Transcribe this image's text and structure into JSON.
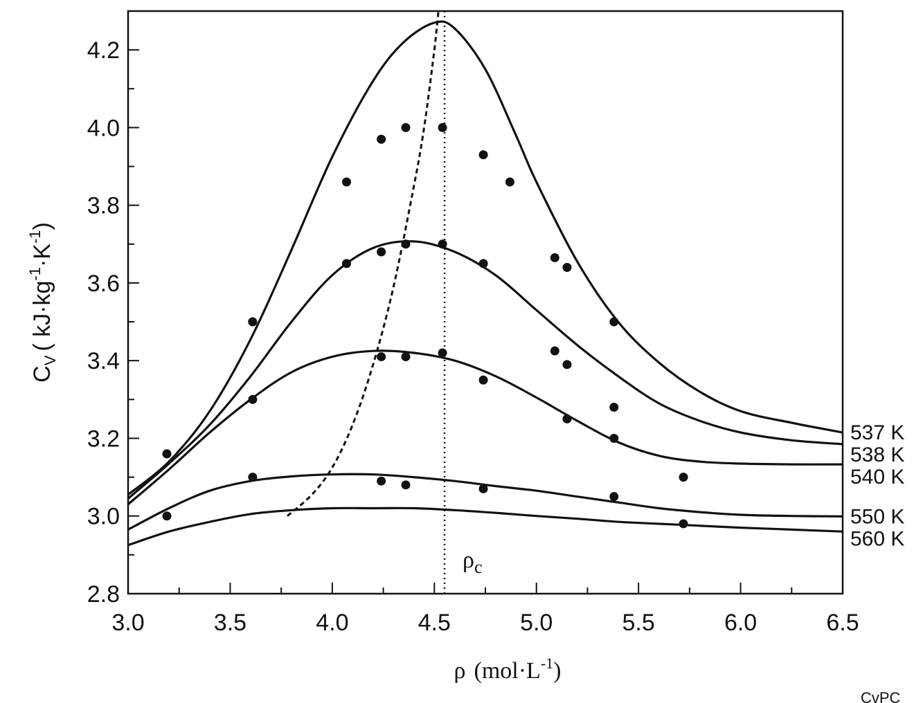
{
  "chart_data": {
    "type": "line",
    "xlabel": "ρ",
    "xlabel_unit": "(mol·L",
    "xlabel_exp": "-1",
    "xlabel_close": ")",
    "ylabel": "C",
    "ylabel_sub": "V",
    "ylabel_unit": "( kJ·kg",
    "ylabel_exp1": "-1",
    "ylabel_mid": "·K",
    "ylabel_exp2": "-1",
    "ylabel_close": ")",
    "xlim": [
      3.0,
      6.5
    ],
    "ylim": [
      2.8,
      4.3
    ],
    "x_ticks": [
      "3.0",
      "3.5",
      "4.0",
      "4.5",
      "5.0",
      "5.5",
      "6.0",
      "6.5"
    ],
    "y_ticks": [
      "2.8",
      "3.0",
      "3.2",
      "3.4",
      "3.6",
      "3.8",
      "4.0",
      "4.2"
    ],
    "grid": false,
    "critical_density": {
      "label": "ρ",
      "label_sub": "c",
      "x": 4.55
    },
    "corner_text": "CvPC",
    "series": [
      {
        "name": "537 K",
        "curve": [
          [
            3.0,
            3.055
          ],
          [
            3.2,
            3.14
          ],
          [
            3.4,
            3.27
          ],
          [
            3.6,
            3.455
          ],
          [
            3.8,
            3.685
          ],
          [
            4.0,
            3.925
          ],
          [
            4.2,
            4.12
          ],
          [
            4.35,
            4.22
          ],
          [
            4.5,
            4.27
          ],
          [
            4.6,
            4.255
          ],
          [
            4.75,
            4.15
          ],
          [
            4.9,
            3.98
          ],
          [
            5.0,
            3.86
          ],
          [
            5.2,
            3.655
          ],
          [
            5.4,
            3.5
          ],
          [
            5.6,
            3.395
          ],
          [
            5.8,
            3.32
          ],
          [
            6.0,
            3.27
          ],
          [
            6.25,
            3.24
          ],
          [
            6.5,
            3.215
          ]
        ],
        "points": [
          [
            3.19,
            3.16
          ],
          [
            3.61,
            3.5
          ],
          [
            4.07,
            3.86
          ],
          [
            4.24,
            3.97
          ],
          [
            4.36,
            4.0
          ],
          [
            4.54,
            4.0
          ],
          [
            4.74,
            3.93
          ],
          [
            4.87,
            3.86
          ]
        ]
      },
      {
        "name": "538 K",
        "curve": [
          [
            3.0,
            3.045
          ],
          [
            3.2,
            3.135
          ],
          [
            3.4,
            3.235
          ],
          [
            3.6,
            3.36
          ],
          [
            3.8,
            3.5
          ],
          [
            4.0,
            3.62
          ],
          [
            4.2,
            3.69
          ],
          [
            4.4,
            3.707
          ],
          [
            4.6,
            3.68
          ],
          [
            4.8,
            3.62
          ],
          [
            5.0,
            3.53
          ],
          [
            5.2,
            3.44
          ],
          [
            5.4,
            3.36
          ],
          [
            5.6,
            3.29
          ],
          [
            5.8,
            3.245
          ],
          [
            6.0,
            3.215
          ],
          [
            6.25,
            3.195
          ],
          [
            6.5,
            3.185
          ]
        ],
        "points": [
          [
            3.61,
            3.5
          ],
          [
            4.07,
            3.65
          ],
          [
            4.24,
            3.68
          ],
          [
            4.36,
            3.7
          ],
          [
            4.54,
            3.7
          ],
          [
            4.74,
            3.65
          ],
          [
            5.09,
            3.665
          ],
          [
            5.15,
            3.64
          ],
          [
            5.38,
            3.5
          ]
        ]
      },
      {
        "name": "540 K",
        "curve": [
          [
            3.0,
            3.03
          ],
          [
            3.2,
            3.12
          ],
          [
            3.4,
            3.215
          ],
          [
            3.6,
            3.3
          ],
          [
            3.8,
            3.37
          ],
          [
            4.0,
            3.41
          ],
          [
            4.2,
            3.425
          ],
          [
            4.4,
            3.42
          ],
          [
            4.6,
            3.4
          ],
          [
            4.8,
            3.36
          ],
          [
            5.0,
            3.305
          ],
          [
            5.2,
            3.245
          ],
          [
            5.4,
            3.19
          ],
          [
            5.6,
            3.155
          ],
          [
            5.8,
            3.14
          ],
          [
            6.0,
            3.135
          ],
          [
            6.25,
            3.133
          ],
          [
            6.5,
            3.133
          ]
        ],
        "points": [
          [
            3.19,
            3.16
          ],
          [
            3.61,
            3.3
          ],
          [
            4.24,
            3.41
          ],
          [
            4.36,
            3.41
          ],
          [
            4.54,
            3.42
          ],
          [
            4.74,
            3.35
          ],
          [
            5.09,
            3.425
          ],
          [
            5.15,
            3.39
          ],
          [
            5.15,
            3.25
          ],
          [
            5.38,
            3.28
          ],
          [
            5.38,
            3.2
          ]
        ]
      },
      {
        "name": "550 K",
        "curve": [
          [
            3.0,
            2.965
          ],
          [
            3.2,
            3.02
          ],
          [
            3.4,
            3.065
          ],
          [
            3.6,
            3.09
          ],
          [
            3.8,
            3.102
          ],
          [
            4.0,
            3.107
          ],
          [
            4.2,
            3.107
          ],
          [
            4.4,
            3.1
          ],
          [
            4.6,
            3.09
          ],
          [
            4.8,
            3.077
          ],
          [
            5.0,
            3.065
          ],
          [
            5.2,
            3.05
          ],
          [
            5.4,
            3.035
          ],
          [
            5.6,
            3.02
          ],
          [
            5.8,
            3.01
          ],
          [
            6.0,
            3.003
          ],
          [
            6.25,
            3.0
          ],
          [
            6.5,
            2.999
          ]
        ],
        "points": [
          [
            3.61,
            3.1
          ],
          [
            4.24,
            3.09
          ],
          [
            4.36,
            3.08
          ],
          [
            4.74,
            3.07
          ],
          [
            5.38,
            3.05
          ],
          [
            5.72,
            3.1
          ]
        ]
      },
      {
        "name": "560 K",
        "curve": [
          [
            3.0,
            2.925
          ],
          [
            3.2,
            2.96
          ],
          [
            3.4,
            2.985
          ],
          [
            3.6,
            3.005
          ],
          [
            3.8,
            3.015
          ],
          [
            4.0,
            3.02
          ],
          [
            4.2,
            3.02
          ],
          [
            4.4,
            3.02
          ],
          [
            4.6,
            3.015
          ],
          [
            4.8,
            3.008
          ],
          [
            5.0,
            3.0
          ],
          [
            5.2,
            2.993
          ],
          [
            5.4,
            2.985
          ],
          [
            5.6,
            2.98
          ],
          [
            5.8,
            2.975
          ],
          [
            6.0,
            2.97
          ],
          [
            6.25,
            2.965
          ],
          [
            6.5,
            2.96
          ]
        ],
        "points": [
          [
            3.19,
            3.0
          ],
          [
            5.72,
            2.98
          ]
        ]
      }
    ],
    "dashed_curve": [
      [
        3.78,
        3.0
      ],
      [
        3.9,
        3.055
      ],
      [
        4.0,
        3.125
      ],
      [
        4.1,
        3.235
      ],
      [
        4.2,
        3.39
      ],
      [
        4.3,
        3.59
      ],
      [
        4.4,
        3.85
      ],
      [
        4.45,
        4.0
      ],
      [
        4.5,
        4.2
      ],
      [
        4.52,
        4.3
      ]
    ]
  }
}
